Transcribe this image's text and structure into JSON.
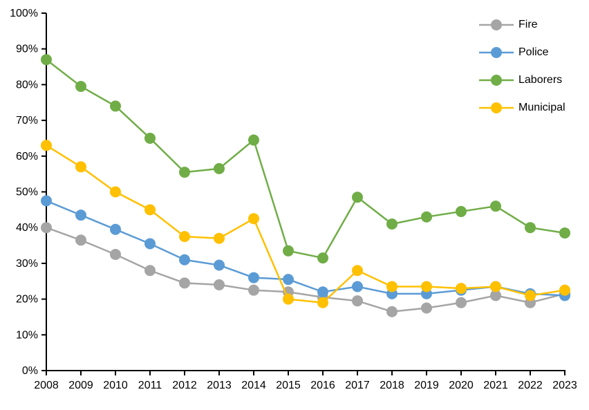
{
  "chart_data": {
    "type": "line",
    "title": "",
    "xlabel": "",
    "ylabel": "",
    "categories": [
      "2008",
      "2009",
      "2010",
      "2011",
      "2012",
      "2013",
      "2014",
      "2015",
      "2016",
      "2017",
      "2018",
      "2019",
      "2020",
      "2021",
      "2022",
      "2023"
    ],
    "series": [
      {
        "name": "Fire",
        "color": "#A5A5A5",
        "values": [
          40,
          36.5,
          32.5,
          28,
          24.5,
          24,
          22.5,
          22,
          20.5,
          19.5,
          16.5,
          17.5,
          19,
          21,
          19,
          21.5
        ]
      },
      {
        "name": "Police",
        "color": "#5B9BD5",
        "values": [
          47.5,
          43.5,
          39.5,
          35.5,
          31,
          29.5,
          26,
          25.5,
          22,
          23.5,
          21.5,
          21.5,
          22.5,
          23.5,
          21.5,
          21
        ]
      },
      {
        "name": "Laborers",
        "color": "#70AD47",
        "values": [
          87,
          79.5,
          74,
          65,
          55.5,
          56.5,
          64.5,
          33.5,
          31.5,
          48.5,
          41,
          43,
          44.5,
          46,
          40,
          38.5
        ]
      },
      {
        "name": "Municipal",
        "color": "#FFC000",
        "values": [
          63,
          57,
          50,
          45,
          37.5,
          37,
          42.5,
          20,
          19,
          28,
          23.5,
          23.5,
          23,
          23.5,
          21,
          22.5
        ]
      }
    ],
    "ylim": [
      0,
      100
    ],
    "y_tick_labels": [
      "0%",
      "10%",
      "20%",
      "30%",
      "40%",
      "50%",
      "60%",
      "70%",
      "80%",
      "90%",
      "100%"
    ],
    "grid": false,
    "legend_position": "top-right",
    "axis_color": "#000000",
    "background_color": "#FFFFFF"
  }
}
